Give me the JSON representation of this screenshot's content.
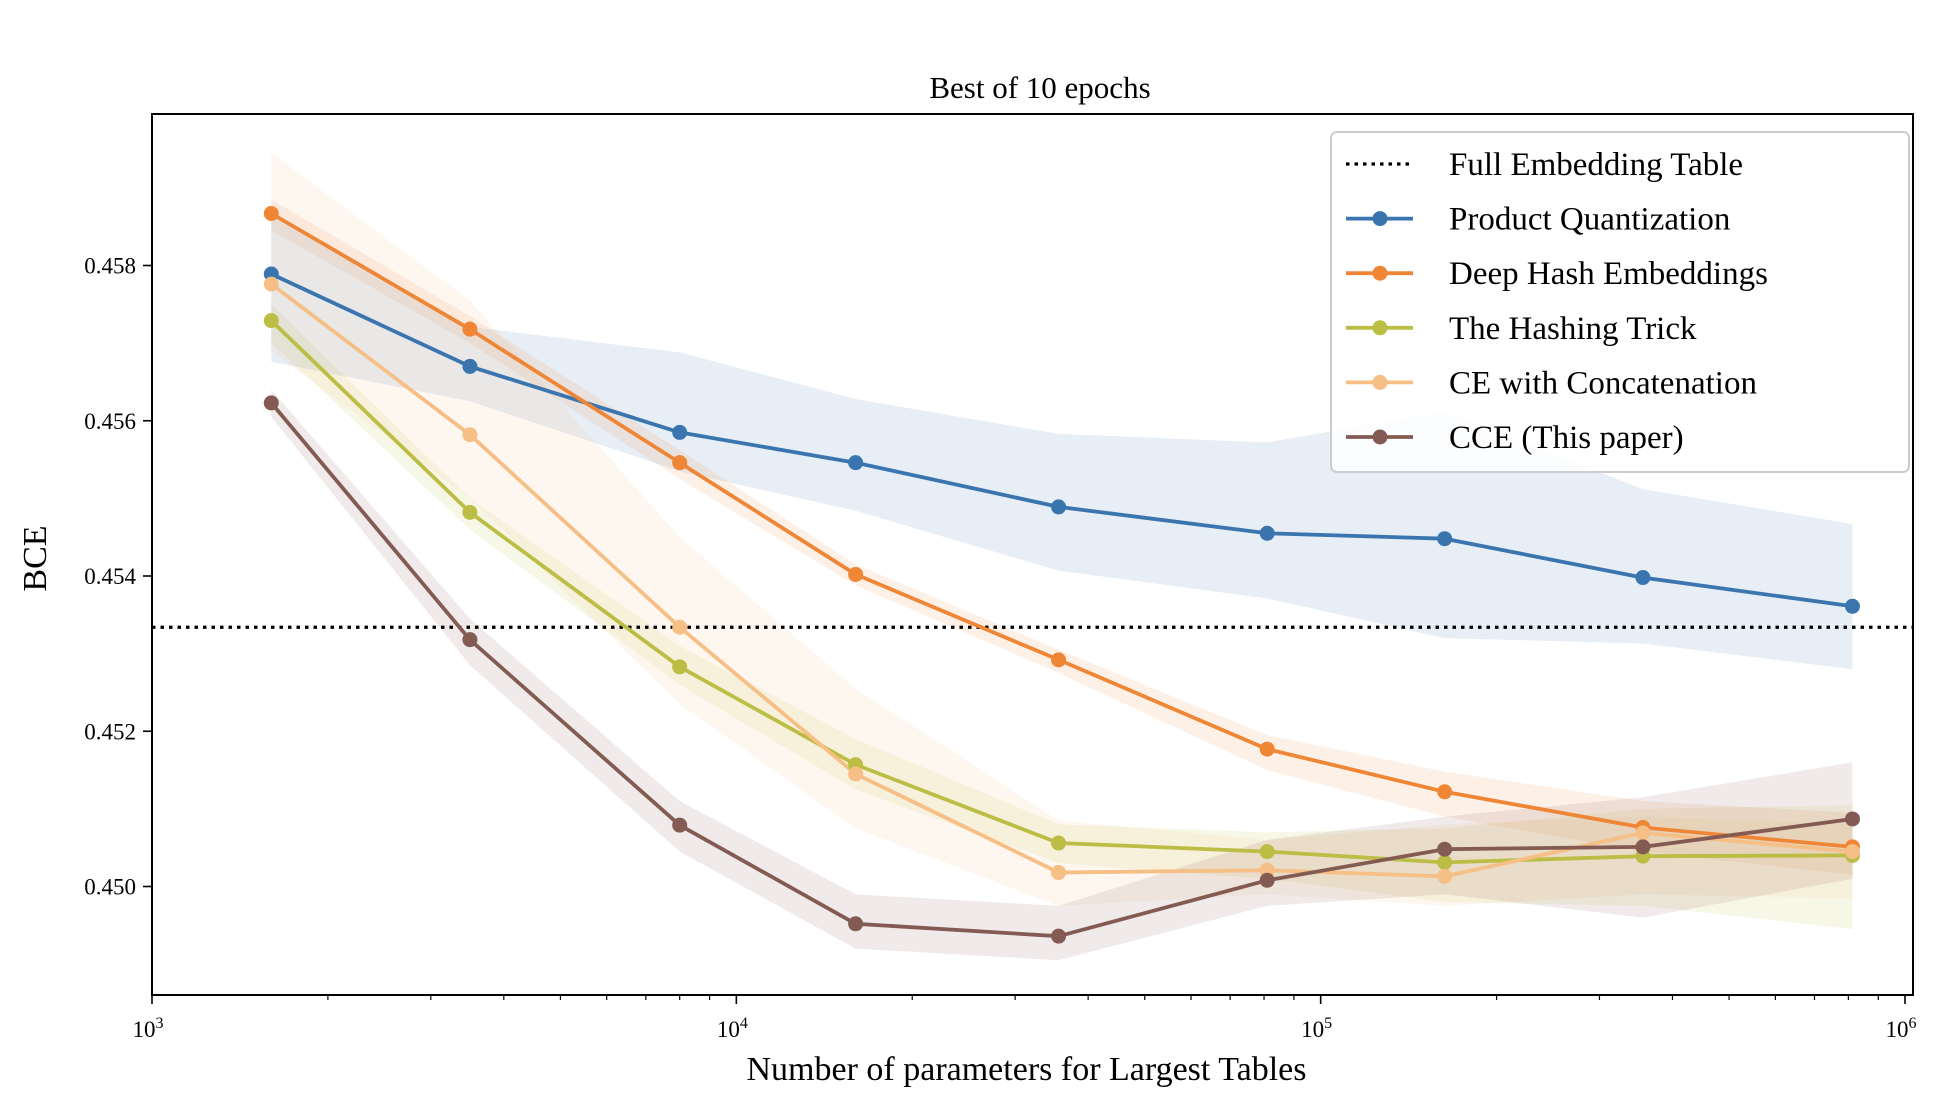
{
  "chart_data": {
    "type": "line",
    "title": "Best of 10 epochs",
    "xlabel": "Number of parameters for Largest Tables",
    "ylabel": "BCE",
    "xscale": "log",
    "xlim": [
      1000,
      1100000
    ],
    "ylim": [
      0.4486,
      0.4598
    ],
    "x_ticks": [
      {
        "value": 1000,
        "base": "10",
        "exp": "3"
      },
      {
        "value": 10000,
        "base": "10",
        "exp": "4"
      },
      {
        "value": 100000,
        "base": "10",
        "exp": "5"
      },
      {
        "value": 1000000,
        "base": "10",
        "exp": "6"
      }
    ],
    "y_ticks": [
      {
        "value": 0.45,
        "label": "0.450"
      },
      {
        "value": 0.452,
        "label": "0.452"
      },
      {
        "value": 0.454,
        "label": "0.454"
      },
      {
        "value": 0.456,
        "label": "0.456"
      },
      {
        "value": 0.458,
        "label": "0.458"
      }
    ],
    "grid": false,
    "legend_position": "top-right",
    "x": [
      1600,
      3500,
      8000,
      16000,
      35600,
      81000,
      163000,
      356000,
      813000
    ],
    "reference_lines": [
      {
        "name": "Full Embedding Table",
        "y": 0.45334,
        "style": "dotted",
        "color": "#000000"
      }
    ],
    "series": [
      {
        "name": "Product Quantization",
        "color": "#3a75af",
        "values": [
          0.45789,
          0.4567,
          0.45585,
          0.45546,
          0.45489,
          0.45455,
          0.45448,
          0.45398,
          0.45361
        ],
        "upper": [
          0.45865,
          0.45721,
          0.45688,
          0.45628,
          0.45583,
          0.45572,
          0.45612,
          0.45512,
          0.45467
        ],
        "lower": [
          0.45676,
          0.45625,
          0.45535,
          0.45484,
          0.45407,
          0.45371,
          0.4532,
          0.45313,
          0.4528
        ]
      },
      {
        "name": "Deep Hash Embeddings",
        "color": "#ef8636",
        "values": [
          0.45867,
          0.45718,
          0.45546,
          0.45402,
          0.45292,
          0.45177,
          0.45122,
          0.45076,
          0.45051
        ],
        "upper": [
          0.45885,
          0.45735,
          0.45562,
          0.45415,
          0.45305,
          0.45195,
          0.45148,
          0.4511,
          0.45095
        ],
        "lower": [
          0.45845,
          0.457,
          0.45525,
          0.45388,
          0.45275,
          0.4515,
          0.4509,
          0.45045,
          0.45015
        ]
      },
      {
        "name": "The Hashing Trick",
        "color": "#bcbd45",
        "values": [
          0.45729,
          0.45482,
          0.45283,
          0.45157,
          0.45056,
          0.45045,
          0.45031,
          0.45039,
          0.4504
        ],
        "upper": [
          0.4575,
          0.455,
          0.4531,
          0.4519,
          0.4508,
          0.4507,
          0.45075,
          0.451,
          0.45105
        ],
        "lower": [
          0.457,
          0.4546,
          0.4526,
          0.45125,
          0.4503,
          0.4501,
          0.4498,
          0.44975,
          0.44945
        ]
      },
      {
        "name": "CE with Concatenation",
        "color": "#f5bf86",
        "values": [
          0.45776,
          0.45582,
          0.45334,
          0.45145,
          0.45018,
          0.45021,
          0.45013,
          0.45069,
          0.45045
        ],
        "upper": [
          0.45945,
          0.45755,
          0.4545,
          0.45255,
          0.45085,
          0.4506,
          0.4508,
          0.4509,
          0.4508
        ],
        "lower": [
          0.4569,
          0.455,
          0.45235,
          0.45075,
          0.44975,
          0.4499,
          0.44975,
          0.4499,
          0.44985
        ]
      },
      {
        "name": "CCE (This paper)",
        "color": "#845b53",
        "values": [
          0.45623,
          0.45318,
          0.45079,
          0.44952,
          0.44936,
          0.45008,
          0.45048,
          0.45051,
          0.45087
        ],
        "upper": [
          0.4564,
          0.45345,
          0.4511,
          0.4499,
          0.44975,
          0.4506,
          0.4509,
          0.45115,
          0.4516
        ],
        "lower": [
          0.45605,
          0.45285,
          0.45045,
          0.4492,
          0.44905,
          0.44975,
          0.4499,
          0.4496,
          0.4501
        ]
      }
    ]
  }
}
